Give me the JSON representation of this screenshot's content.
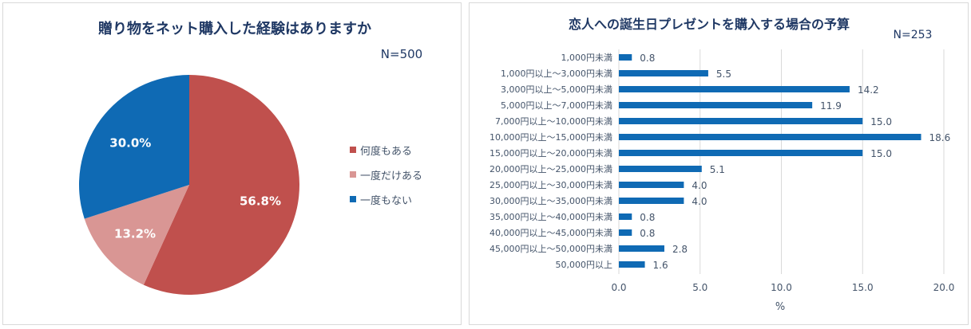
{
  "chart_data": [
    {
      "type": "pie",
      "title": "贈り物をネット購入した経験はありますか",
      "annotation": "N=500",
      "categories": [
        "何度もある",
        "一度だけある",
        "一度もない"
      ],
      "values": [
        56.8,
        13.2,
        30.0
      ],
      "labels": [
        "56.8%",
        "13.2%",
        "30.0%"
      ],
      "colors": [
        "#c0504d",
        "#d99694",
        "#0f6ab4"
      ],
      "legend_position": "right"
    },
    {
      "type": "bar",
      "orientation": "horizontal",
      "title": "恋人への誕生日プレゼントを購入する場合の予算",
      "annotation": "N=253",
      "categories": [
        "1,000円未満",
        "1,000円以上～3,000円未満",
        "3,000円以上～5,000円未満",
        "5,000円以上～7,000円未満",
        "7,000円以上～10,000円未満",
        "10,000円以上～15,000円未満",
        "15,000円以上～20,000円未満",
        "20,000円以上～25,000円未満",
        "25,000円以上～30,000円未満",
        "30,000円以上～35,000円未満",
        "35,000円以上～40,000円未満",
        "40,000円以上～45,000円未満",
        "45,000円以上～50,000円未満",
        "50,000円以上"
      ],
      "values": [
        0.8,
        5.5,
        14.2,
        11.9,
        15.0,
        18.6,
        15.0,
        5.1,
        4.0,
        4.0,
        0.8,
        0.8,
        2.8,
        1.6
      ],
      "value_labels": [
        "0.8",
        "5.5",
        "14.2",
        "11.9",
        "15.0",
        "18.6",
        "15.0",
        "5.1",
        "4.0",
        "4.0",
        "0.8",
        "0.8",
        "2.8",
        "1.6"
      ],
      "xlabel": "%",
      "ylabel": "",
      "xlim": [
        0,
        20
      ],
      "xticks": [
        0,
        5,
        10,
        15,
        20
      ],
      "xtick_labels": [
        "0.0",
        "5.0",
        "10.0",
        "15.0",
        "20.0"
      ],
      "grid": true,
      "bar_color": "#0f6ab4"
    }
  ]
}
